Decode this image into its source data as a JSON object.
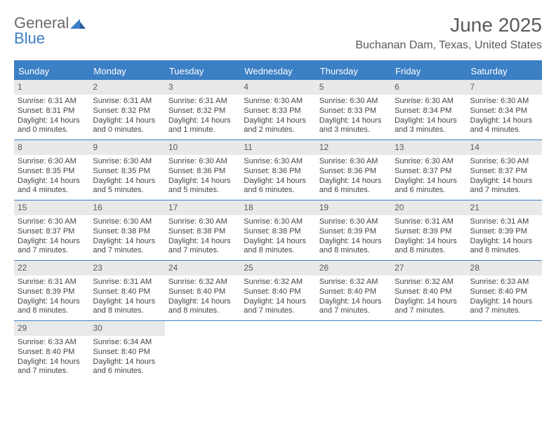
{
  "brand": {
    "part1": "General",
    "part2": "Blue"
  },
  "title": "June 2025",
  "location": "Buchanan Dam, Texas, United States",
  "colors": {
    "accent": "#3b7fc4",
    "header_text": "#5a5a5a",
    "daynum_bg": "#e9e9e9",
    "body_text": "#444444",
    "page_bg": "#ffffff"
  },
  "day_headers": [
    "Sunday",
    "Monday",
    "Tuesday",
    "Wednesday",
    "Thursday",
    "Friday",
    "Saturday"
  ],
  "weeks": [
    [
      {
        "n": "1",
        "sr": "Sunrise: 6:31 AM",
        "ss": "Sunset: 8:31 PM",
        "d1": "Daylight: 14 hours",
        "d2": "and 0 minutes."
      },
      {
        "n": "2",
        "sr": "Sunrise: 6:31 AM",
        "ss": "Sunset: 8:32 PM",
        "d1": "Daylight: 14 hours",
        "d2": "and 0 minutes."
      },
      {
        "n": "3",
        "sr": "Sunrise: 6:31 AM",
        "ss": "Sunset: 8:32 PM",
        "d1": "Daylight: 14 hours",
        "d2": "and 1 minute."
      },
      {
        "n": "4",
        "sr": "Sunrise: 6:30 AM",
        "ss": "Sunset: 8:33 PM",
        "d1": "Daylight: 14 hours",
        "d2": "and 2 minutes."
      },
      {
        "n": "5",
        "sr": "Sunrise: 6:30 AM",
        "ss": "Sunset: 8:33 PM",
        "d1": "Daylight: 14 hours",
        "d2": "and 3 minutes."
      },
      {
        "n": "6",
        "sr": "Sunrise: 6:30 AM",
        "ss": "Sunset: 8:34 PM",
        "d1": "Daylight: 14 hours",
        "d2": "and 3 minutes."
      },
      {
        "n": "7",
        "sr": "Sunrise: 6:30 AM",
        "ss": "Sunset: 8:34 PM",
        "d1": "Daylight: 14 hours",
        "d2": "and 4 minutes."
      }
    ],
    [
      {
        "n": "8",
        "sr": "Sunrise: 6:30 AM",
        "ss": "Sunset: 8:35 PM",
        "d1": "Daylight: 14 hours",
        "d2": "and 4 minutes."
      },
      {
        "n": "9",
        "sr": "Sunrise: 6:30 AM",
        "ss": "Sunset: 8:35 PM",
        "d1": "Daylight: 14 hours",
        "d2": "and 5 minutes."
      },
      {
        "n": "10",
        "sr": "Sunrise: 6:30 AM",
        "ss": "Sunset: 8:36 PM",
        "d1": "Daylight: 14 hours",
        "d2": "and 5 minutes."
      },
      {
        "n": "11",
        "sr": "Sunrise: 6:30 AM",
        "ss": "Sunset: 8:36 PM",
        "d1": "Daylight: 14 hours",
        "d2": "and 6 minutes."
      },
      {
        "n": "12",
        "sr": "Sunrise: 6:30 AM",
        "ss": "Sunset: 8:36 PM",
        "d1": "Daylight: 14 hours",
        "d2": "and 6 minutes."
      },
      {
        "n": "13",
        "sr": "Sunrise: 6:30 AM",
        "ss": "Sunset: 8:37 PM",
        "d1": "Daylight: 14 hours",
        "d2": "and 6 minutes."
      },
      {
        "n": "14",
        "sr": "Sunrise: 6:30 AM",
        "ss": "Sunset: 8:37 PM",
        "d1": "Daylight: 14 hours",
        "d2": "and 7 minutes."
      }
    ],
    [
      {
        "n": "15",
        "sr": "Sunrise: 6:30 AM",
        "ss": "Sunset: 8:37 PM",
        "d1": "Daylight: 14 hours",
        "d2": "and 7 minutes."
      },
      {
        "n": "16",
        "sr": "Sunrise: 6:30 AM",
        "ss": "Sunset: 8:38 PM",
        "d1": "Daylight: 14 hours",
        "d2": "and 7 minutes."
      },
      {
        "n": "17",
        "sr": "Sunrise: 6:30 AM",
        "ss": "Sunset: 8:38 PM",
        "d1": "Daylight: 14 hours",
        "d2": "and 7 minutes."
      },
      {
        "n": "18",
        "sr": "Sunrise: 6:30 AM",
        "ss": "Sunset: 8:38 PM",
        "d1": "Daylight: 14 hours",
        "d2": "and 8 minutes."
      },
      {
        "n": "19",
        "sr": "Sunrise: 6:30 AM",
        "ss": "Sunset: 8:39 PM",
        "d1": "Daylight: 14 hours",
        "d2": "and 8 minutes."
      },
      {
        "n": "20",
        "sr": "Sunrise: 6:31 AM",
        "ss": "Sunset: 8:39 PM",
        "d1": "Daylight: 14 hours",
        "d2": "and 8 minutes."
      },
      {
        "n": "21",
        "sr": "Sunrise: 6:31 AM",
        "ss": "Sunset: 8:39 PM",
        "d1": "Daylight: 14 hours",
        "d2": "and 8 minutes."
      }
    ],
    [
      {
        "n": "22",
        "sr": "Sunrise: 6:31 AM",
        "ss": "Sunset: 8:39 PM",
        "d1": "Daylight: 14 hours",
        "d2": "and 8 minutes."
      },
      {
        "n": "23",
        "sr": "Sunrise: 6:31 AM",
        "ss": "Sunset: 8:40 PM",
        "d1": "Daylight: 14 hours",
        "d2": "and 8 minutes."
      },
      {
        "n": "24",
        "sr": "Sunrise: 6:32 AM",
        "ss": "Sunset: 8:40 PM",
        "d1": "Daylight: 14 hours",
        "d2": "and 8 minutes."
      },
      {
        "n": "25",
        "sr": "Sunrise: 6:32 AM",
        "ss": "Sunset: 8:40 PM",
        "d1": "Daylight: 14 hours",
        "d2": "and 7 minutes."
      },
      {
        "n": "26",
        "sr": "Sunrise: 6:32 AM",
        "ss": "Sunset: 8:40 PM",
        "d1": "Daylight: 14 hours",
        "d2": "and 7 minutes."
      },
      {
        "n": "27",
        "sr": "Sunrise: 6:32 AM",
        "ss": "Sunset: 8:40 PM",
        "d1": "Daylight: 14 hours",
        "d2": "and 7 minutes."
      },
      {
        "n": "28",
        "sr": "Sunrise: 6:33 AM",
        "ss": "Sunset: 8:40 PM",
        "d1": "Daylight: 14 hours",
        "d2": "and 7 minutes."
      }
    ],
    [
      {
        "n": "29",
        "sr": "Sunrise: 6:33 AM",
        "ss": "Sunset: 8:40 PM",
        "d1": "Daylight: 14 hours",
        "d2": "and 7 minutes."
      },
      {
        "n": "30",
        "sr": "Sunrise: 6:34 AM",
        "ss": "Sunset: 8:40 PM",
        "d1": "Daylight: 14 hours",
        "d2": "and 6 minutes."
      },
      null,
      null,
      null,
      null,
      null
    ]
  ]
}
